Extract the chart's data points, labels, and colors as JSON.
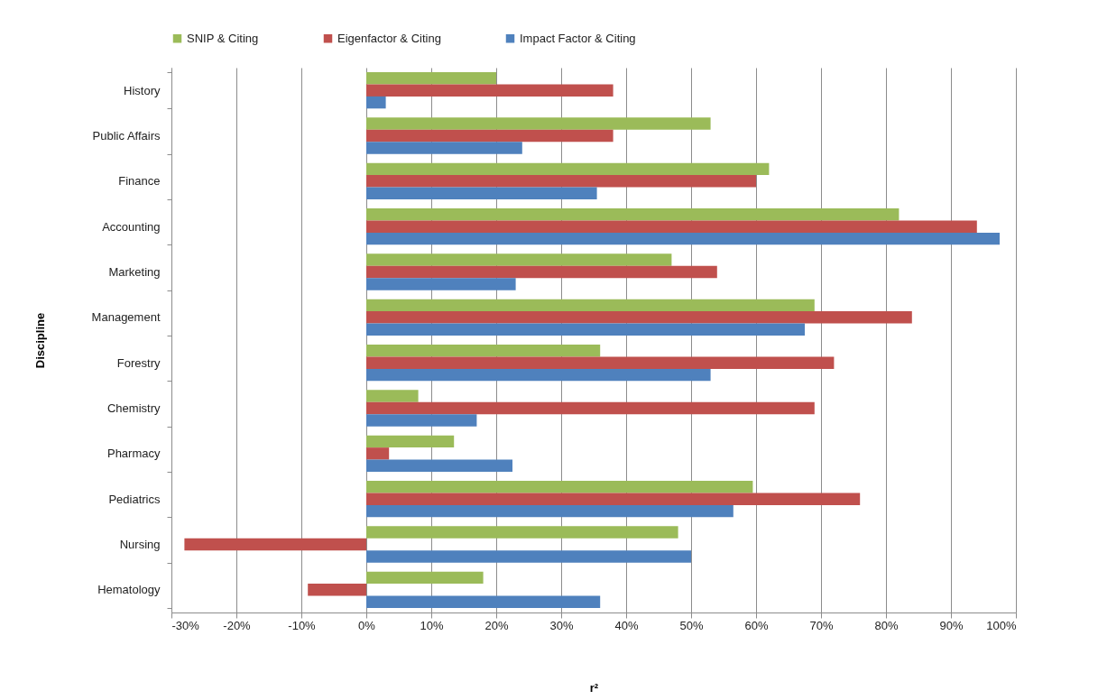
{
  "chart_data": {
    "type": "bar",
    "orientation": "horizontal",
    "xlabel": "r²",
    "ylabel": "Discipline",
    "legend": "top",
    "grid": "x",
    "categories": [
      "History",
      "Public Affairs",
      "Finance",
      "Accounting",
      "Marketing",
      "Management",
      "Forestry",
      "Chemistry",
      "Pharmacy",
      "Pediatrics",
      "Nursing",
      "Hematology"
    ],
    "series": [
      {
        "name": "SNIP & Citing",
        "color": "#9bbb59",
        "values": [
          20,
          53,
          62,
          82,
          47,
          69,
          36,
          8,
          13.5,
          59.5,
          48,
          18
        ]
      },
      {
        "name": "Eigenfactor & Citing",
        "color": "#c0504d",
        "values": [
          38,
          38,
          60,
          94,
          54,
          84,
          72,
          69,
          3.5,
          76,
          -28,
          -9
        ]
      },
      {
        "name": "Impact Factor & Citing",
        "color": "#4f81bd",
        "values": [
          3,
          24,
          35.5,
          97.5,
          23,
          67.5,
          53,
          17,
          22.5,
          56.5,
          50,
          36
        ]
      }
    ],
    "xlim": [
      -30,
      100
    ],
    "xticks": [
      {
        "value": -30,
        "label": "-30%"
      },
      {
        "value": -20,
        "label": "-20%"
      },
      {
        "value": -10,
        "label": "-10%"
      },
      {
        "value": 0,
        "label": "0%"
      },
      {
        "value": 10,
        "label": "10%"
      },
      {
        "value": 20,
        "label": "20%"
      },
      {
        "value": 30,
        "label": "30%"
      },
      {
        "value": 40,
        "label": "40%"
      },
      {
        "value": 50,
        "label": "50%"
      },
      {
        "value": 60,
        "label": "60%"
      },
      {
        "value": 70,
        "label": "70%"
      },
      {
        "value": 80,
        "label": "80%"
      },
      {
        "value": 90,
        "label": "90%"
      },
      {
        "value": 100,
        "label": "100%"
      }
    ]
  }
}
